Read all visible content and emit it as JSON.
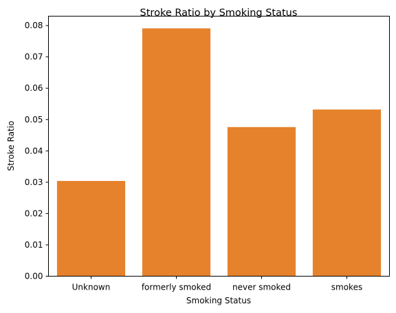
{
  "chart_data": {
    "type": "bar",
    "title": "Stroke Ratio by Smoking Status",
    "xlabel": "Smoking Status",
    "ylabel": "Stroke Ratio",
    "categories": [
      "Unknown",
      "formerly smoked",
      "never smoked",
      "smokes"
    ],
    "values": [
      0.0304,
      0.0791,
      0.0476,
      0.0532
    ],
    "ylim": [
      0,
      0.083
    ],
    "yticks": [
      0.0,
      0.01,
      0.02,
      0.03,
      0.04,
      0.05,
      0.06,
      0.07,
      0.08
    ],
    "ytick_labels": [
      "0.00",
      "0.01",
      "0.02",
      "0.03",
      "0.04",
      "0.05",
      "0.06",
      "0.07",
      "0.08"
    ],
    "bar_color": "#e6822b",
    "grid": false,
    "legend": "none"
  }
}
